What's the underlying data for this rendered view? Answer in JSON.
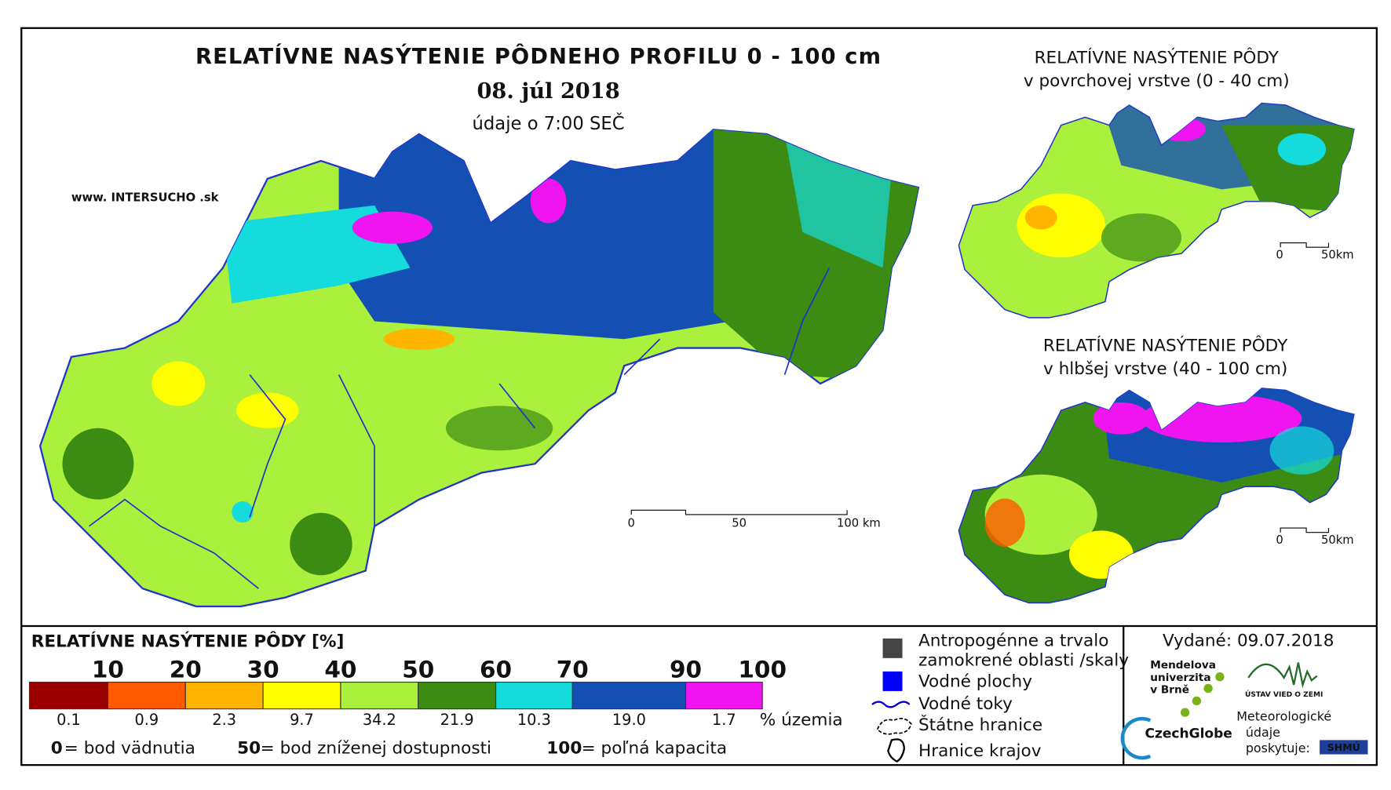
{
  "header": {
    "title": "RELATÍVNE NASÝTENIE PÔDNEHO PROFILU 0 - 100 cm",
    "date": "08. júl 2018",
    "time_note": "údaje o 7:00 SEČ",
    "website": "www. INTERSUCHO .sk"
  },
  "main_map": {
    "scale_labels": [
      "0",
      "50",
      "100 km"
    ]
  },
  "insets": [
    {
      "title": [
        "RELATÍVNE NASÝTENIE PÔDY",
        "v povrchovej vrstve (0 - 40 cm)"
      ],
      "scale_labels": [
        "0",
        "50km"
      ]
    },
    {
      "title": [
        "RELATÍVNE NASÝTENIE PÔDY",
        "v hlbšej vrstve (40 - 100 cm)"
      ],
      "scale_labels": [
        "0",
        "50km"
      ]
    }
  ],
  "legend": {
    "title": "RELATÍVNE NASÝTENIE PÔDY [%]",
    "breaks": [
      "10",
      "20",
      "30",
      "40",
      "50",
      "60",
      "70",
      "90",
      "100"
    ],
    "colors": [
      "#9b0000",
      "#ff5a00",
      "#ffb400",
      "#ffff00",
      "#aaf03c",
      "#3c8c14",
      "#14dcdc",
      "#1450b4",
      "#f014f0"
    ],
    "shares": [
      "0.1",
      "0.9",
      "2.3",
      "9.7",
      "34.2",
      "21.9",
      "10.3",
      "19.0",
      "1.7"
    ],
    "shares_unit": "% územia",
    "notes": [
      {
        "value": "0",
        "text": "= bod vädnutia"
      },
      {
        "value": "50",
        "text": "= bod zníženej dostupnosti"
      },
      {
        "value": "100",
        "text": "= poľná kapacita"
      }
    ]
  },
  "symbols": {
    "items": [
      [
        "Antropogénne a trvalo",
        "zamokrené oblasti /skaly"
      ],
      [
        "Vodné plochy"
      ],
      [
        "Vodné toky"
      ],
      [
        "Štátne hranice"
      ],
      [
        "Hranice krajov"
      ]
    ]
  },
  "issued": "Vydané: 09.07.2018",
  "logos": {
    "mendel": [
      "Mendelova",
      "univerzita",
      "v Brně"
    ],
    "czechglobe": "CzechGlobe",
    "ustav": "ÚSTAV VIED O ZEMI",
    "meteo": [
      "Meteorologické",
      "údaje",
      "poskytuje:"
    ],
    "shmu": "SHMÚ"
  }
}
